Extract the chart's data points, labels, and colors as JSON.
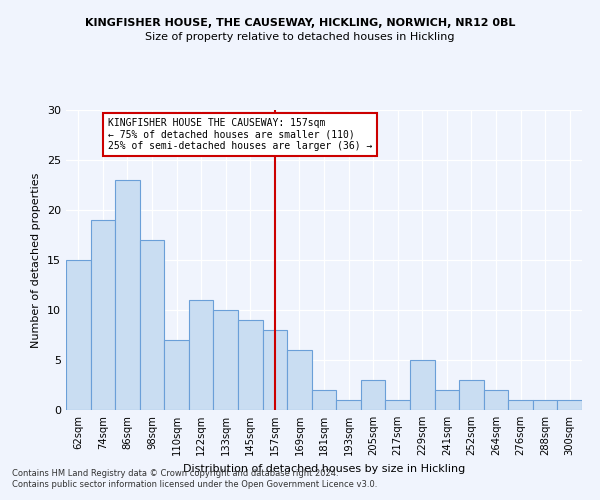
{
  "title": "KINGFISHER HOUSE, THE CAUSEWAY, HICKLING, NORWICH, NR12 0BL",
  "subtitle": "Size of property relative to detached houses in Hickling",
  "xlabel": "Distribution of detached houses by size in Hickling",
  "ylabel": "Number of detached properties",
  "categories": [
    "62sqm",
    "74sqm",
    "86sqm",
    "98sqm",
    "110sqm",
    "122sqm",
    "133sqm",
    "145sqm",
    "157sqm",
    "169sqm",
    "181sqm",
    "193sqm",
    "205sqm",
    "217sqm",
    "229sqm",
    "241sqm",
    "252sqm",
    "264sqm",
    "276sqm",
    "288sqm",
    "300sqm"
  ],
  "values": [
    15,
    19,
    23,
    17,
    7,
    11,
    10,
    9,
    8,
    6,
    2,
    1,
    3,
    1,
    5,
    2,
    3,
    2,
    1,
    1,
    1
  ],
  "bar_color": "#c9ddf2",
  "bar_edge_color": "#6a9fd8",
  "highlight_index": 8,
  "highlight_color": "#cc0000",
  "ylim": [
    0,
    30
  ],
  "yticks": [
    0,
    5,
    10,
    15,
    20,
    25,
    30
  ],
  "annotation_title": "KINGFISHER HOUSE THE CAUSEWAY: 157sqm",
  "annotation_line1": "← 75% of detached houses are smaller (110)",
  "annotation_line2": "25% of semi-detached houses are larger (36) →",
  "footer_line1": "Contains HM Land Registry data © Crown copyright and database right 2024.",
  "footer_line2": "Contains public sector information licensed under the Open Government Licence v3.0.",
  "background_color": "#f0f4fd",
  "plot_bg_color": "#f0f4fd"
}
